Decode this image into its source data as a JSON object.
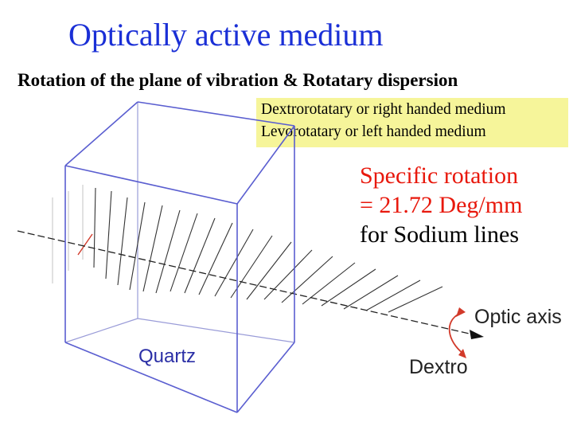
{
  "title": "Optically active medium",
  "subtitle": "Rotation of the plane of vibration & Rotatary dispersion",
  "legend": {
    "line1": "Dextrorotatary or right handed medium",
    "line2": "Levorotatary or left handed medium",
    "background": "#f6f59a"
  },
  "specific_rotation": {
    "line1": "Specific rotation",
    "line2": "= 21.72 Deg/mm",
    "line3": "for Sodium lines",
    "color": "#e8180c"
  },
  "diagram": {
    "crystal_label": "Quartz",
    "axis_label": "Optic axis",
    "rotation_label": "Dextro",
    "box_color": "#5a5ed0",
    "arrow_color": "#d23a2a",
    "icons": [
      "rotation-arrow-icon",
      "axis-arrowhead-icon"
    ]
  }
}
